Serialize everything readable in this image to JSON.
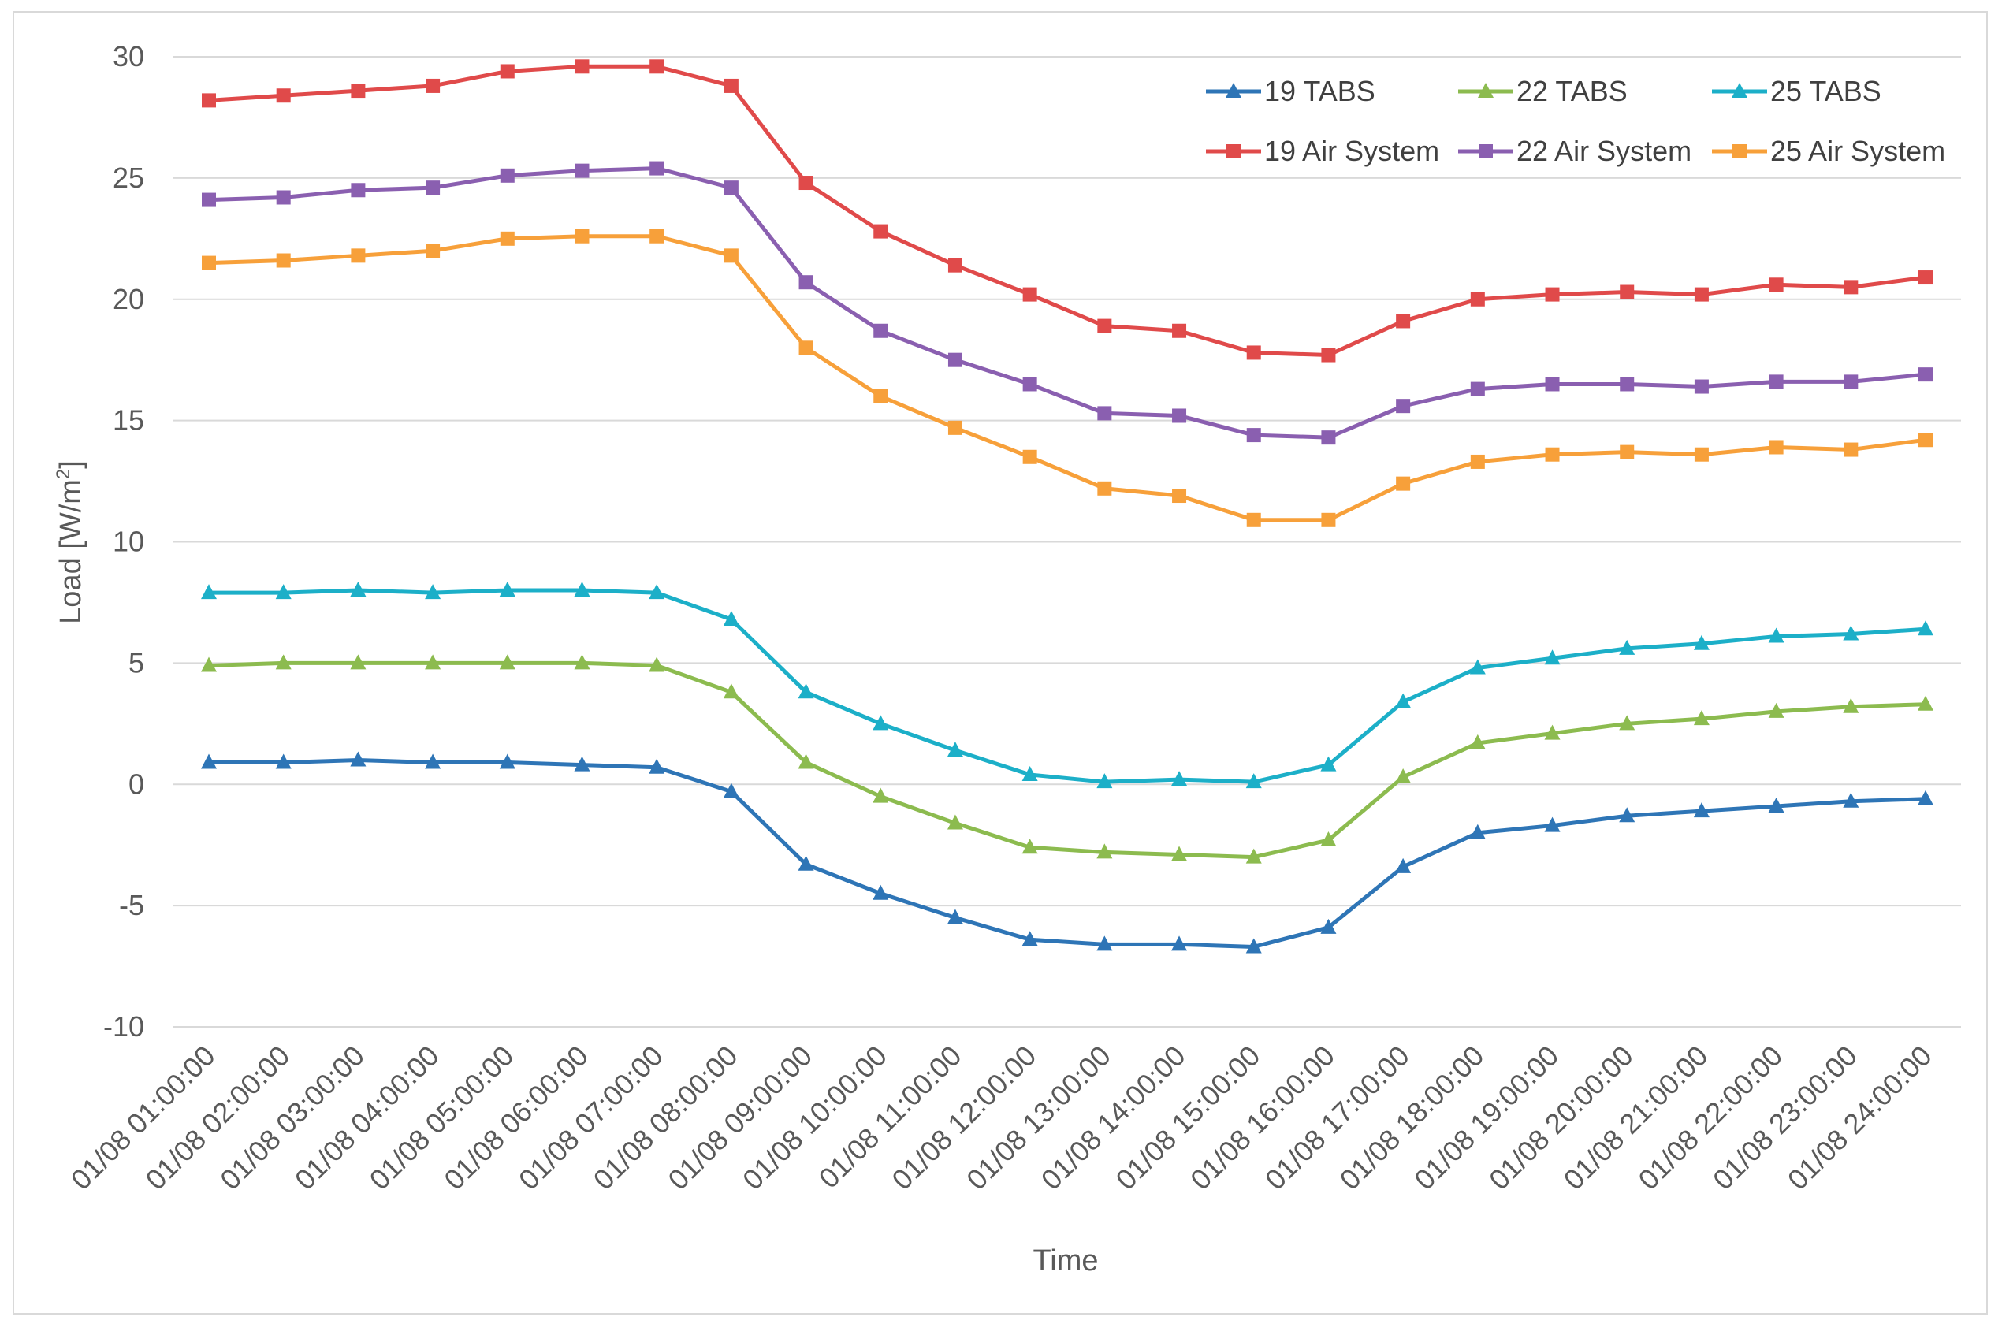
{
  "chart_data": {
    "type": "line",
    "title": "",
    "xlabel": "Time",
    "ylabel_main": "Load [W/m",
    "ylabel_sup": "2",
    "ylabel_end": "]",
    "ylim": [
      -10,
      30
    ],
    "yticks": [
      -10,
      -5,
      0,
      5,
      10,
      15,
      20,
      25,
      30
    ],
    "grid": true,
    "legend_position": "top-right",
    "categories": [
      "01/08 01:00:00",
      "01/08 02:00:00",
      "01/08 03:00:00",
      "01/08 04:00:00",
      "01/08 05:00:00",
      "01/08 06:00:00",
      "01/08 07:00:00",
      "01/08 08:00:00",
      "01/08 09:00:00",
      "01/08 10:00:00",
      "01/08 11:00:00",
      "01/08 12:00:00",
      "01/08 13:00:00",
      "01/08 14:00:00",
      "01/08 15:00:00",
      "01/08 16:00:00",
      "01/08 17:00:00",
      "01/08 18:00:00",
      "01/08 19:00:00",
      "01/08 20:00:00",
      "01/08 21:00:00",
      "01/08 22:00:00",
      "01/08 23:00:00",
      "01/08 24:00:00"
    ],
    "series": [
      {
        "name": "19 TABS",
        "color": "#2E75B6",
        "marker": "triangle",
        "values": [
          0.9,
          0.9,
          1.0,
          0.9,
          0.9,
          0.8,
          0.7,
          -0.3,
          -3.3,
          -4.5,
          -5.5,
          -6.4,
          -6.6,
          -6.6,
          -6.7,
          -5.9,
          -3.4,
          -2.0,
          -1.7,
          -1.3,
          -1.1,
          -0.9,
          -0.7,
          -0.6
        ]
      },
      {
        "name": "22 TABS",
        "color": "#8CBB4F",
        "marker": "triangle",
        "values": [
          4.9,
          5.0,
          5.0,
          5.0,
          5.0,
          5.0,
          4.9,
          3.8,
          0.9,
          -0.5,
          -1.6,
          -2.6,
          -2.8,
          -2.9,
          -3.0,
          -2.3,
          0.3,
          1.7,
          2.1,
          2.5,
          2.7,
          3.0,
          3.2,
          3.3
        ]
      },
      {
        "name": "25 TABS",
        "color": "#1CAFC8",
        "marker": "triangle",
        "values": [
          7.9,
          7.9,
          8.0,
          7.9,
          8.0,
          8.0,
          7.9,
          6.8,
          3.8,
          2.5,
          1.4,
          0.4,
          0.1,
          0.2,
          0.1,
          0.8,
          3.4,
          4.8,
          5.2,
          5.6,
          5.8,
          6.1,
          6.2,
          6.4
        ]
      },
      {
        "name": "19 Air System",
        "color": "#E04A4A",
        "marker": "square",
        "values": [
          28.2,
          28.4,
          28.6,
          28.8,
          29.4,
          29.6,
          29.6,
          28.8,
          24.8,
          22.8,
          21.4,
          20.2,
          18.9,
          18.7,
          17.8,
          17.7,
          19.1,
          20.0,
          20.2,
          20.3,
          20.2,
          20.6,
          20.5,
          20.9
        ]
      },
      {
        "name": "22 Air System",
        "color": "#8A5FB0",
        "marker": "square",
        "values": [
          24.1,
          24.2,
          24.5,
          24.6,
          25.1,
          25.3,
          25.4,
          24.6,
          20.7,
          18.7,
          17.5,
          16.5,
          15.3,
          15.2,
          14.4,
          14.3,
          15.6,
          16.3,
          16.5,
          16.5,
          16.4,
          16.6,
          16.6,
          16.9
        ]
      },
      {
        "name": "25 Air System",
        "color": "#F7A03A",
        "marker": "square",
        "values": [
          21.5,
          21.6,
          21.8,
          22.0,
          22.5,
          22.6,
          22.6,
          21.8,
          18.0,
          16.0,
          14.7,
          13.5,
          12.2,
          11.9,
          10.9,
          10.9,
          12.4,
          13.3,
          13.6,
          13.7,
          13.6,
          13.9,
          13.8,
          14.2
        ]
      }
    ]
  }
}
